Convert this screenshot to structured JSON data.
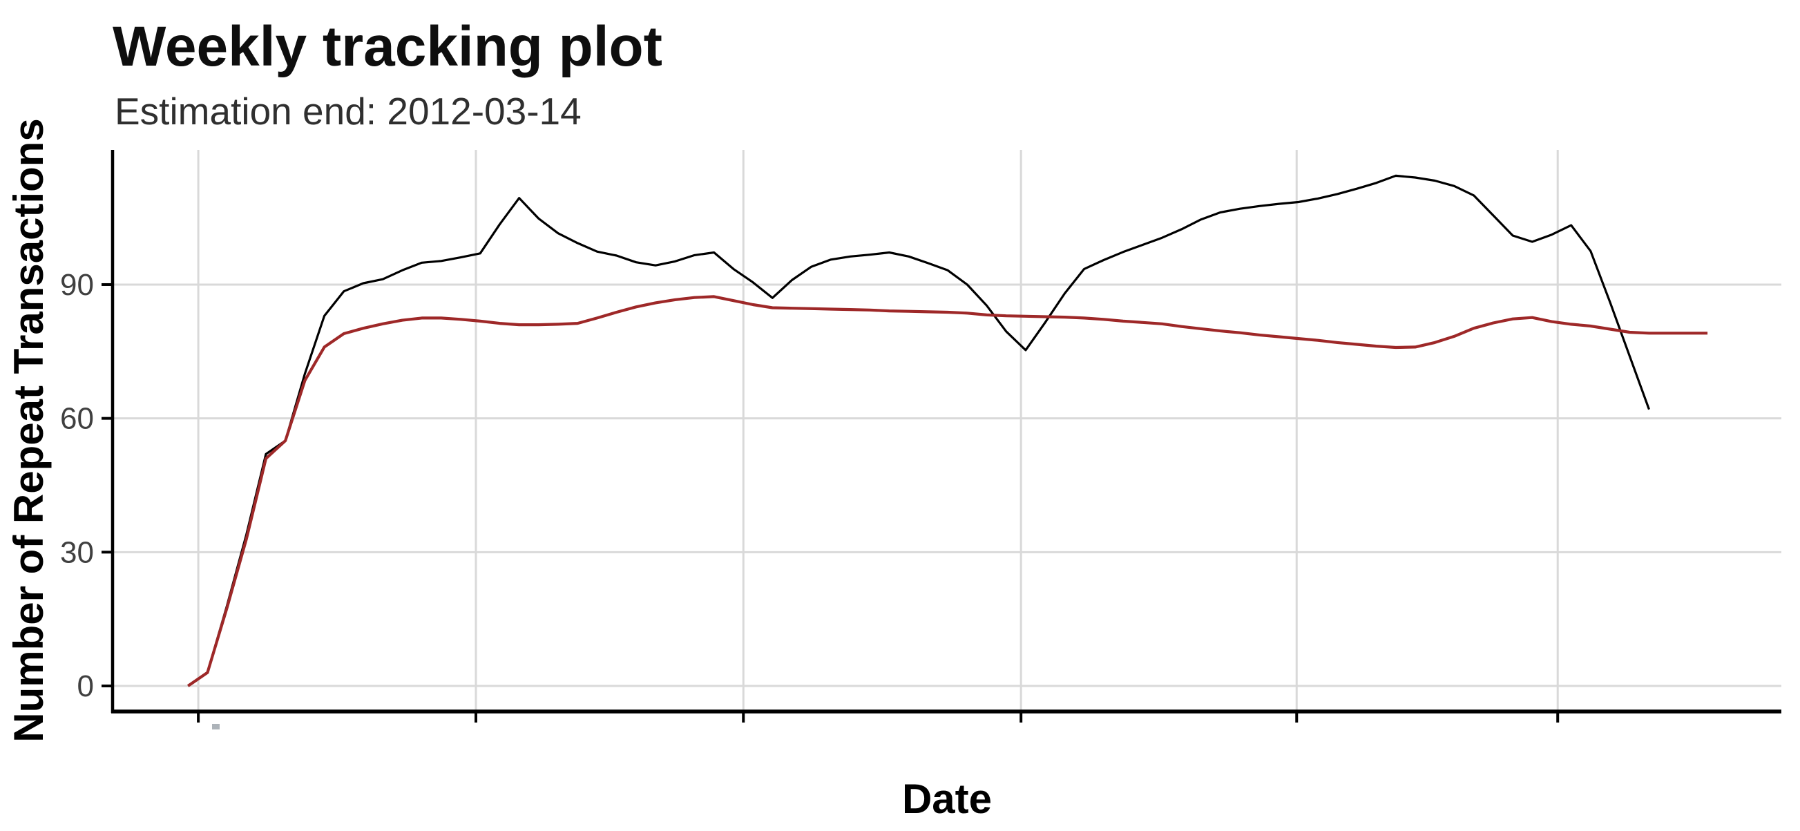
{
  "header": {
    "title": "Weekly tracking plot",
    "subtitle": "Estimation end: 2012-03-14"
  },
  "colors": {
    "background": "#FFFFFF",
    "gridline": "#D9D9D9",
    "axis_line": "#000000",
    "tick_mark": "#000000",
    "tick_label": "#404040",
    "actual_line": "#000000",
    "model_line": "#9E2828",
    "clipped_label_artifact": "#98A0A8"
  },
  "chart_data": {
    "type": "line",
    "title": "Weekly tracking plot",
    "subtitle": "Estimation end: 2012-03-14",
    "xlabel": "Date",
    "ylabel": "Number of Repeat Transactions",
    "x_unit": "week_index",
    "x_tick_labels_visible": false,
    "grid": true,
    "legend_position": "none",
    "xlim": [
      -3.87,
      81.79
    ],
    "ylim": [
      -5.73,
      120.2
    ],
    "y_ticks": [
      0,
      30,
      60,
      90
    ],
    "x_gridlines_weeks": [
      0.53,
      14.78,
      28.51,
      42.76,
      56.91,
      70.31
    ],
    "series": [
      {
        "name": "black",
        "color": "#000000",
        "stroke_width": 3.2,
        "start_week": 0,
        "values": [
          0,
          3,
          18,
          34,
          52,
          55,
          70,
          83,
          88.5,
          90.3,
          91.2,
          93.2,
          94.9,
          95.3,
          96.1,
          97,
          103.5,
          109.4,
          104.8,
          101.5,
          99.3,
          97.4,
          96.5,
          95,
          94.3,
          95.2,
          96.6,
          97.2,
          93.5,
          90.5,
          87,
          91,
          94,
          95.6,
          96.3,
          96.7,
          97.2,
          96.3,
          94.8,
          93.2,
          90,
          85.3,
          79.5,
          75.3,
          81.5,
          88,
          93.5,
          95.5,
          97.3,
          98.9,
          100.5,
          102.4,
          104.6,
          106.2,
          107,
          107.6,
          108.1,
          108.5,
          109.3,
          110.3,
          111.5,
          112.8,
          114.4,
          114,
          113.3,
          112.1,
          110,
          105.5,
          101,
          99.6,
          101.2,
          103.3,
          97.5,
          86,
          74,
          62
        ]
      },
      {
        "name": "red",
        "color": "#9E2828",
        "stroke_width": 4.2,
        "start_week": 0,
        "values": [
          0,
          3,
          17.5,
          33,
          51,
          55,
          68.5,
          76,
          79,
          80.2,
          81.2,
          82,
          82.5,
          82.5,
          82.2,
          81.8,
          81.3,
          81,
          81,
          81.1,
          81.3,
          82.5,
          83.8,
          85,
          85.9,
          86.6,
          87.1,
          87.3,
          86.4,
          85.5,
          84.8,
          84.7,
          84.6,
          84.5,
          84.4,
          84.3,
          84.1,
          84,
          83.9,
          83.8,
          83.6,
          83.2,
          83,
          82.9,
          82.8,
          82.7,
          82.5,
          82.2,
          81.8,
          81.5,
          81.2,
          80.6,
          80.1,
          79.6,
          79.2,
          78.7,
          78.3,
          77.9,
          77.5,
          77,
          76.6,
          76.2,
          75.9,
          76,
          77,
          78.4,
          80.2,
          81.4,
          82.3,
          82.6,
          81.7,
          81.1,
          80.7,
          80,
          79.3,
          79.1,
          79.1,
          79.1,
          79.1
        ]
      }
    ]
  },
  "artifact": {
    "note": "clipped x tick label fragment"
  }
}
